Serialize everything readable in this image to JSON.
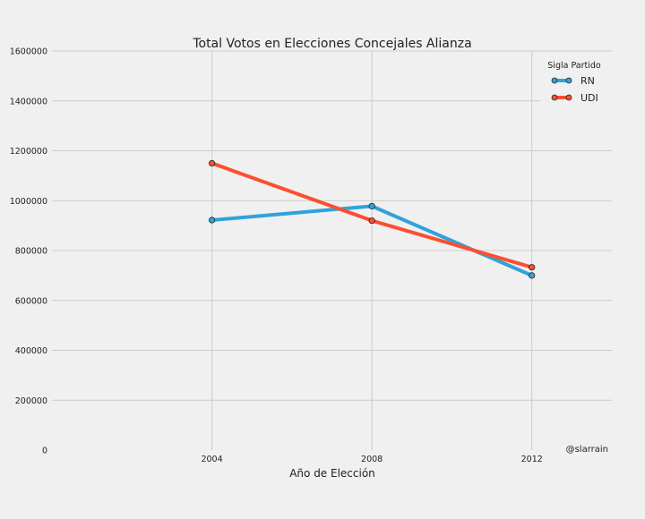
{
  "chart_data": {
    "type": "line",
    "title": "Total Votos en Elecciones Concejales Alianza",
    "xlabel": "Año de Elección",
    "ylabel": "",
    "x": [
      2004,
      2008,
      2012
    ],
    "xlim": [
      2000,
      2014
    ],
    "ylim": [
      0,
      1600000
    ],
    "yticks": [
      0,
      200000,
      400000,
      600000,
      800000,
      1000000,
      1200000,
      1400000,
      1600000
    ],
    "ytick_labels": [
      "0",
      "200000",
      "400000",
      "600000",
      "800000",
      "1000000",
      "1200000",
      "1400000",
      "1600000"
    ],
    "xticks": [
      2004,
      2008,
      2012
    ],
    "xtick_labels": [
      "2004",
      "2008",
      "2012"
    ],
    "grid": true,
    "legend": {
      "title": "Sigla Partido",
      "placement": "top-right"
    },
    "series": [
      {
        "name": "RN",
        "color": "#30a2da",
        "values": [
          922000,
          978000,
          700000
        ]
      },
      {
        "name": "UDI",
        "color": "#fc4f30",
        "values": [
          1150000,
          920000,
          733000
        ]
      }
    ],
    "annotation": "@slarrain",
    "colors": {
      "background": "#f0f0f0",
      "grid": "#cbcbcb",
      "text": "#222222"
    }
  }
}
